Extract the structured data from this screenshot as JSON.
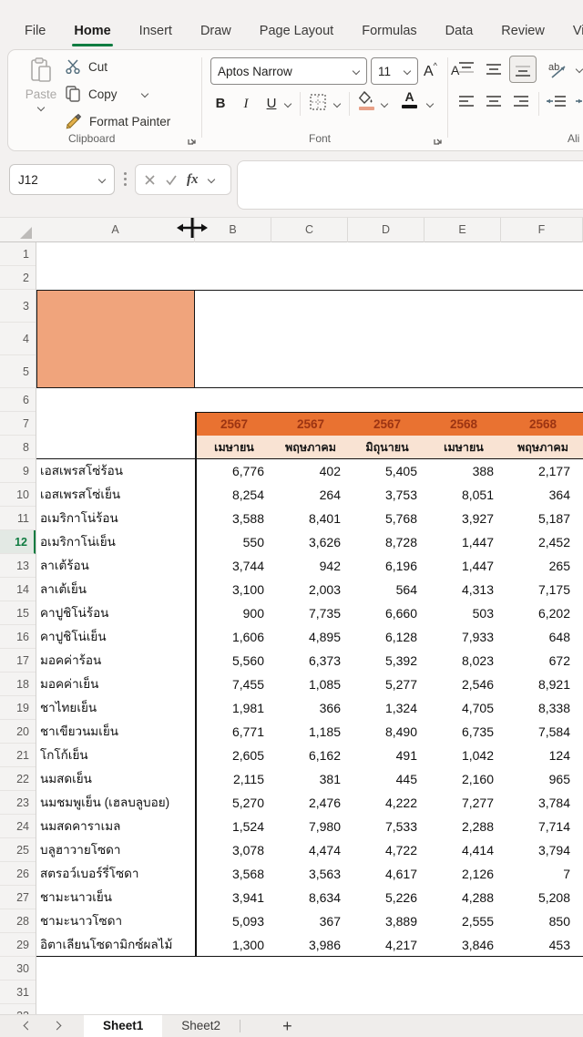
{
  "colors": {
    "accent": "#107C41",
    "hdr": "#E97231",
    "hdrtext": "#9C3412",
    "peach": "#F9E3D3",
    "block": "#F0A47C"
  },
  "ribbon": {
    "tabs": [
      {
        "label": "File",
        "active": false
      },
      {
        "label": "Home",
        "active": true
      },
      {
        "label": "Insert",
        "active": false
      },
      {
        "label": "Draw",
        "active": false
      },
      {
        "label": "Page Layout",
        "active": false
      },
      {
        "label": "Formulas",
        "active": false
      },
      {
        "label": "Data",
        "active": false
      },
      {
        "label": "Review",
        "active": false
      },
      {
        "label": "View",
        "active": false
      }
    ],
    "clipboard": {
      "group_label": "Clipboard",
      "paste": "Paste",
      "cut": "Cut",
      "copy": "Copy",
      "format_painter": "Format Painter"
    },
    "font_group": {
      "group_label": "Font",
      "font_name": "Aptos Narrow",
      "font_size": "11",
      "bold": "B",
      "italic": "I",
      "underline": "U",
      "grow_font": "A",
      "shrink_font": "A",
      "font_color_letter": "A",
      "orientation_letters": "ab"
    },
    "alignment_group": {
      "group_label_visible": "Ali"
    }
  },
  "formula_bar": {
    "name_box_value": "J12",
    "fx_label": "fx"
  },
  "grid": {
    "column_headers": [
      "A",
      "B",
      "C",
      "D",
      "E",
      "F"
    ],
    "row_numbers": [
      "1",
      "2",
      "3",
      "4",
      "5",
      "6",
      "7",
      "8",
      "9",
      "10",
      "11",
      "12",
      "13",
      "14",
      "15",
      "16",
      "17",
      "18",
      "19",
      "20",
      "21",
      "22",
      "23",
      "24",
      "25",
      "26",
      "27",
      "28",
      "29",
      "30",
      "31",
      "32"
    ],
    "selected_row": "12"
  },
  "table": {
    "years": [
      "2567",
      "2567",
      "2567",
      "2568",
      "2568"
    ],
    "months": [
      "เมษายน",
      "พฤษภาคม",
      "มิถุนายน",
      "เมษายน",
      "พฤษภาคม"
    ],
    "rows": [
      {
        "label": "เอสเพรสโซ่ร้อน",
        "values": [
          "6,776",
          "402",
          "5,405",
          "388",
          "2,177"
        ]
      },
      {
        "label": "เอสเพรสโซ่เย็น",
        "values": [
          "8,254",
          "264",
          "3,753",
          "8,051",
          "364"
        ]
      },
      {
        "label": "อเมริกาโน่ร้อน",
        "values": [
          "3,588",
          "8,401",
          "5,768",
          "3,927",
          "5,187"
        ]
      },
      {
        "label": "อเมริกาโน่เย็น",
        "values": [
          "550",
          "3,626",
          "8,728",
          "1,447",
          "2,452"
        ]
      },
      {
        "label": "ลาเต้ร้อน",
        "values": [
          "3,744",
          "942",
          "6,196",
          "1,447",
          "265"
        ]
      },
      {
        "label": "ลาเต้เย็น",
        "values": [
          "3,100",
          "2,003",
          "564",
          "4,313",
          "7,175"
        ]
      },
      {
        "label": "คาปูชิโน่ร้อน",
        "values": [
          "900",
          "7,735",
          "6,660",
          "503",
          "6,202"
        ]
      },
      {
        "label": "คาปูชิโน่เย็น",
        "values": [
          "1,606",
          "4,895",
          "6,128",
          "7,933",
          "648"
        ]
      },
      {
        "label": "มอคค่าร้อน",
        "values": [
          "5,560",
          "6,373",
          "5,392",
          "8,023",
          "672"
        ]
      },
      {
        "label": "มอคค่าเย็น",
        "values": [
          "7,455",
          "1,085",
          "5,277",
          "2,546",
          "8,921"
        ]
      },
      {
        "label": "ชาไทยเย็น",
        "values": [
          "1,981",
          "366",
          "1,324",
          "4,705",
          "8,338"
        ]
      },
      {
        "label": "ชาเขียวนมเย็น",
        "values": [
          "6,771",
          "1,185",
          "8,490",
          "6,735",
          "7,584"
        ]
      },
      {
        "label": "โกโก้เย็น",
        "values": [
          "2,605",
          "6,162",
          "491",
          "1,042",
          "124"
        ]
      },
      {
        "label": "นมสดเย็น",
        "values": [
          "2,115",
          "381",
          "445",
          "2,160",
          "965"
        ]
      },
      {
        "label": "นมชมพูเย็น (เฮลบลูบอย)",
        "values": [
          "5,270",
          "2,476",
          "4,222",
          "7,277",
          "3,784"
        ]
      },
      {
        "label": "นมสดคาราเมล",
        "values": [
          "1,524",
          "7,980",
          "7,533",
          "2,288",
          "7,714"
        ]
      },
      {
        "label": "บลูฮาวายโซดา",
        "values": [
          "3,078",
          "4,474",
          "4,722",
          "4,414",
          "3,794"
        ]
      },
      {
        "label": "สตรอว์เบอร์รี่โซดา",
        "values": [
          "3,568",
          "3,563",
          "4,617",
          "2,126",
          "7"
        ]
      },
      {
        "label": "ชามะนาวเย็น",
        "values": [
          "3,941",
          "8,634",
          "5,226",
          "4,288",
          "5,208"
        ]
      },
      {
        "label": "ชามะนาวโซดา",
        "values": [
          "5,093",
          "367",
          "3,889",
          "2,555",
          "850"
        ]
      },
      {
        "label": "อิตาเลียนโซดามิกซ์ผลไม้",
        "values": [
          "1,300",
          "3,986",
          "4,217",
          "3,846",
          "453"
        ]
      }
    ]
  },
  "sheet_bar": {
    "tabs": [
      {
        "label": "Sheet1",
        "active": true
      },
      {
        "label": "Sheet2",
        "active": false
      }
    ],
    "add_sheet_label": "+"
  }
}
